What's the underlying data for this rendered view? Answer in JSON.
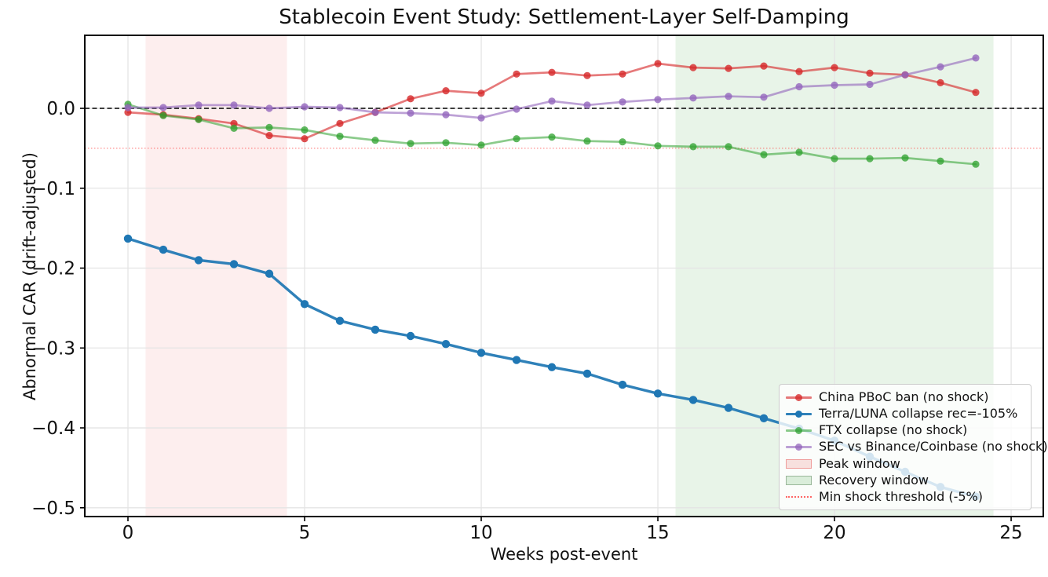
{
  "chart_data": {
    "type": "line",
    "title": "Stablecoin Event Study: Settlement-Layer Self-Damping",
    "xlabel": "Weeks post-event",
    "ylabel": "Abnormal CAR (drift-adjusted)",
    "x": [
      0,
      1,
      2,
      3,
      4,
      5,
      6,
      7,
      8,
      9,
      10,
      11,
      12,
      13,
      14,
      15,
      16,
      17,
      18,
      19,
      20,
      21,
      22,
      23,
      24
    ],
    "series": [
      {
        "name": "China PBoC ban (no shock)",
        "color": "#d62728",
        "alpha": 0.62,
        "marker_alpha": 0.8,
        "line_width": 2.7,
        "marker_radius": 4.6,
        "values": [
          -0.005,
          -0.008,
          -0.013,
          -0.019,
          -0.034,
          -0.038,
          -0.019,
          -0.005,
          0.012,
          0.022,
          0.019,
          0.043,
          0.045,
          0.041,
          0.043,
          0.056,
          0.051,
          0.05,
          0.053,
          0.046,
          0.051,
          0.044,
          0.042,
          0.032,
          0.02
        ]
      },
      {
        "name": "Terra/LUNA collapse rec=-105%",
        "color": "#1f77b4",
        "alpha": 0.93,
        "marker_alpha": 1.0,
        "line_width": 3.4,
        "marker_radius": 5.2,
        "values": [
          -0.163,
          -0.177,
          -0.19,
          -0.195,
          -0.207,
          -0.245,
          -0.266,
          -0.277,
          -0.285,
          -0.295,
          -0.306,
          -0.315,
          -0.324,
          -0.332,
          -0.346,
          -0.357,
          -0.365,
          -0.375,
          -0.388,
          -0.401,
          -0.416,
          -0.436,
          -0.455,
          -0.474,
          -0.486
        ]
      },
      {
        "name": "FTX collapse (no shock)",
        "color": "#2ca02c",
        "alpha": 0.55,
        "marker_alpha": 0.75,
        "line_width": 2.7,
        "marker_radius": 4.6,
        "values": [
          0.005,
          -0.009,
          -0.014,
          -0.025,
          -0.024,
          -0.027,
          -0.035,
          -0.04,
          -0.044,
          -0.043,
          -0.046,
          -0.038,
          -0.036,
          -0.041,
          -0.042,
          -0.047,
          -0.048,
          -0.048,
          -0.058,
          -0.055,
          -0.063,
          -0.063,
          -0.062,
          -0.066,
          -0.07
        ]
      },
      {
        "name": "SEC vs Binance/Coinbase (no shock)",
        "color": "#9467bd",
        "alpha": 0.62,
        "marker_alpha": 0.8,
        "line_width": 2.7,
        "marker_radius": 4.6,
        "values": [
          0.001,
          0.001,
          0.004,
          0.004,
          0.0,
          0.002,
          0.001,
          -0.005,
          -0.006,
          -0.008,
          -0.012,
          -0.001,
          0.009,
          0.004,
          0.008,
          0.011,
          0.013,
          0.015,
          0.014,
          0.027,
          0.029,
          0.03,
          0.042,
          0.052,
          0.063
        ]
      }
    ],
    "regions": [
      {
        "name": "Peak window",
        "x0": 0.5,
        "x1": 4.5,
        "fill": "rgba(224,32,32,0.08)"
      },
      {
        "name": "Recovery window",
        "x0": 15.5,
        "x1": 24.5,
        "fill": "rgba(0,128,0,0.09)"
      }
    ],
    "reference_lines": [
      {
        "name": "zero-line",
        "y": 0,
        "color": "#000000",
        "dash": "6,3.5",
        "width": 1.4,
        "opacity": 1
      },
      {
        "name": "Min shock threshold (-5%)",
        "y": -0.05,
        "color": "#ff3333",
        "dash": "1.5,2.5",
        "width": 1.2,
        "opacity": 0.55
      }
    ],
    "axes": {
      "xlim": [
        -1.222,
        25.91
      ],
      "ylim": [
        -0.511,
        0.0914
      ],
      "grid": true,
      "xticks": [
        {
          "v": 0,
          "label": "0"
        },
        {
          "v": 5,
          "label": "5"
        },
        {
          "v": 10,
          "label": "10"
        },
        {
          "v": 15,
          "label": "15"
        },
        {
          "v": 20,
          "label": "20"
        },
        {
          "v": 25,
          "label": "25"
        }
      ],
      "yticks": [
        {
          "v": 0,
          "label": "0.0"
        },
        {
          "v": -0.1,
          "label": "−0.1"
        },
        {
          "v": -0.2,
          "label": "−0.2"
        },
        {
          "v": -0.3,
          "label": "−0.3"
        },
        {
          "v": -0.4,
          "label": "−0.4"
        },
        {
          "v": -0.5,
          "label": "−0.5"
        }
      ]
    },
    "legend_position": "lower right",
    "legend": [
      {
        "label": "China PBoC ban (no shock)",
        "swatch": "line",
        "color": "#d62728",
        "alpha": 0.62
      },
      {
        "label": "Terra/LUNA collapse rec=-105%",
        "swatch": "line",
        "color": "#1f77b4",
        "alpha": 0.93
      },
      {
        "label": "FTX collapse (no shock)",
        "swatch": "line",
        "color": "#2ca02c",
        "alpha": 0.55
      },
      {
        "label": "SEC vs Binance/Coinbase (no shock)",
        "swatch": "line",
        "color": "#9467bd",
        "alpha": 0.62
      },
      {
        "label": "Peak window",
        "swatch": "patch",
        "fill": "rgba(224,32,32,0.13)",
        "border": "rgba(224,32,32,0.35)"
      },
      {
        "label": "Recovery window",
        "swatch": "patch",
        "fill": "rgba(0,128,0,0.13)",
        "border": "rgba(90,130,90,0.5)"
      },
      {
        "label": "Min shock threshold (-5%)",
        "swatch": "dotted",
        "color": "rgba(255,51,51,0.75)"
      }
    ]
  }
}
